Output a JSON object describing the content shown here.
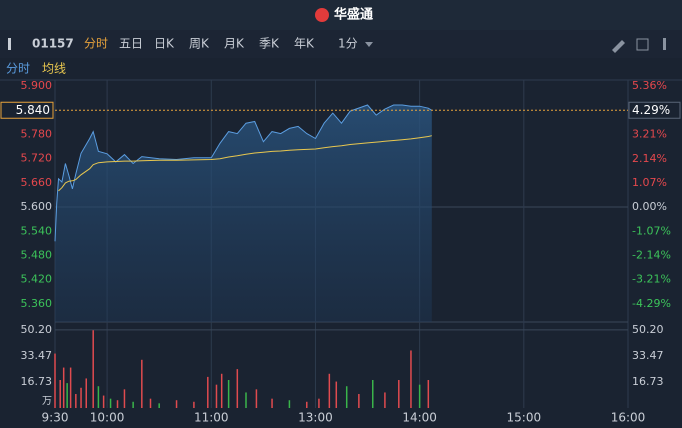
{
  "header": {
    "title": "华盛通"
  },
  "toolbar": {
    "code": "01157",
    "tabs": [
      "分时",
      "五日",
      "日K",
      "周K",
      "月K",
      "季K",
      "年K"
    ],
    "interval": "1分"
  },
  "chart_data": [
    {
      "type": "line",
      "x": [
        "9:30",
        "9:31",
        "9:32",
        "9:34",
        "9:36",
        "9:38",
        "9:40",
        "9:42",
        "9:45",
        "9:50",
        "9:52",
        "9:55",
        "10:00",
        "10:05",
        "10:10",
        "10:15",
        "10:20",
        "10:30",
        "10:40",
        "10:50",
        "11:00",
        "11:05",
        "11:10",
        "11:15",
        "11:20",
        "11:25",
        "11:30",
        "11:35",
        "11:40",
        "11:45",
        "11:50",
        "11:55",
        "12:00",
        "13:05",
        "13:10",
        "13:15",
        "13:20",
        "13:30",
        "13:35",
        "13:40",
        "13:45",
        "13:50",
        "13:55",
        "14:00",
        "14:05",
        "14:07"
      ],
      "series": [
        {
          "name": "分时",
          "color": "#5b9de0",
          "values": [
            5.515,
            5.608,
            5.67,
            5.662,
            5.708,
            5.678,
            5.645,
            5.682,
            5.733,
            5.77,
            5.787,
            5.738,
            5.732,
            5.712,
            5.73,
            5.708,
            5.725,
            5.72,
            5.718,
            5.722,
            5.722,
            5.758,
            5.787,
            5.782,
            5.808,
            5.812,
            5.762,
            5.787,
            5.782,
            5.795,
            5.8,
            5.782,
            5.77,
            5.808,
            5.833,
            5.808,
            5.838,
            5.853,
            5.828,
            5.843,
            5.853,
            5.853,
            5.85,
            5.85,
            5.845,
            5.84
          ]
        },
        {
          "name": "均线",
          "color": "#e8c74f",
          "values": [
            null,
            null,
            5.64,
            5.648,
            5.66,
            5.664,
            5.665,
            5.668,
            5.68,
            5.695,
            5.705,
            5.71,
            5.712,
            5.713,
            5.714,
            5.714,
            5.715,
            5.716,
            5.716,
            5.717,
            5.718,
            5.72,
            5.724,
            5.727,
            5.731,
            5.734,
            5.736,
            5.738,
            5.739,
            5.741,
            5.742,
            5.743,
            5.744,
            5.747,
            5.75,
            5.752,
            5.755,
            5.759,
            5.761,
            5.763,
            5.765,
            5.767,
            5.769,
            5.772,
            5.775,
            5.777
          ]
        }
      ],
      "xlim": [
        "9:30",
        "16:00"
      ],
      "xticks": [
        "9:30",
        "10:00",
        "11:00",
        "13:00",
        "14:00",
        "15:00",
        "16:00"
      ],
      "ylim": [
        5.315,
        5.915
      ],
      "yticks": [
        {
          "value": 5.9,
          "label": "5.900"
        },
        {
          "value": 5.78,
          "label": "5.780"
        },
        {
          "value": 5.72,
          "label": "5.720"
        },
        {
          "value": 5.66,
          "label": "5.660"
        },
        {
          "value": 5.6,
          "label": "5.600"
        },
        {
          "value": 5.54,
          "label": "5.540"
        },
        {
          "value": 5.48,
          "label": "5.480"
        },
        {
          "value": 5.42,
          "label": "5.420"
        },
        {
          "value": 5.36,
          "label": "5.360"
        }
      ],
      "y2lim": [
        -5.09,
        5.63
      ],
      "y2ticks": [
        {
          "value": 5.36,
          "label": "5.36%"
        },
        {
          "value": 3.21,
          "label": "3.21%"
        },
        {
          "value": 2.14,
          "label": "2.14%"
        },
        {
          "value": 1.07,
          "label": "1.07%"
        },
        {
          "value": 0,
          "label": "0.00%"
        },
        {
          "value": -1.07,
          "label": "-1.07%"
        },
        {
          "value": -2.14,
          "label": "-2.14%"
        },
        {
          "value": -3.21,
          "label": "-3.21%"
        },
        {
          "value": -4.29,
          "label": "-4.29%"
        }
      ],
      "current": {
        "value": 5.84,
        "label": "5.840"
      },
      "current_pct": {
        "value": 4.29,
        "label": "4.29%"
      }
    },
    {
      "type": "bar",
      "x": [
        "9:30",
        "9:33",
        "9:35",
        "9:37",
        "9:39",
        "9:42",
        "9:45",
        "9:48",
        "9:52",
        "9:55",
        "9:58",
        "10:02",
        "10:06",
        "10:10",
        "10:15",
        "10:20",
        "10:25",
        "10:30",
        "10:40",
        "10:50",
        "10:58",
        "11:03",
        "11:06",
        "11:10",
        "11:15",
        "11:20",
        "11:26",
        "11:35",
        "11:45",
        "11:55",
        "13:02",
        "13:08",
        "13:12",
        "13:18",
        "13:25",
        "13:33",
        "13:40",
        "13:48",
        "13:55",
        "14:00",
        "14:05"
      ],
      "values": [
        35,
        18,
        26,
        16,
        26,
        9,
        13,
        19,
        50,
        14,
        8,
        6,
        5,
        12,
        4,
        31,
        6,
        3,
        5,
        4,
        20,
        15,
        22,
        18,
        25,
        10,
        12,
        6,
        5,
        4,
        6,
        22,
        17,
        14,
        9,
        18,
        10,
        18,
        37,
        15,
        18
      ],
      "colors": [
        "#e04b4f",
        "#e04b4f",
        "#e04b4f",
        "#3ab54a",
        "#e04b4f",
        "#e04b4f",
        "#e04b4f",
        "#e04b4f",
        "#e04b4f",
        "#3ab54a",
        "#e04b4f",
        "#3ab54a",
        "#e04b4f",
        "#e04b4f",
        "#3ab54a",
        "#e04b4f",
        "#e04b4f",
        "#3ab54a",
        "#e04b4f",
        "#e04b4f",
        "#e04b4f",
        "#e04b4f",
        "#e04b4f",
        "#3ab54a",
        "#e04b4f",
        "#3ab54a",
        "#e04b4f",
        "#e04b4f",
        "#3ab54a",
        "#e04b4f",
        "#e04b4f",
        "#e04b4f",
        "#e04b4f",
        "#3ab54a",
        "#e04b4f",
        "#3ab54a",
        "#e04b4f",
        "#e04b4f",
        "#e04b4f",
        "#3ab54a",
        "#e04b4f"
      ],
      "ylim": [
        0,
        55.3
      ],
      "yticks": [
        {
          "value": 50.2,
          "label": "50.20"
        },
        33.47,
        16.73
      ],
      "unit": "万"
    }
  ]
}
